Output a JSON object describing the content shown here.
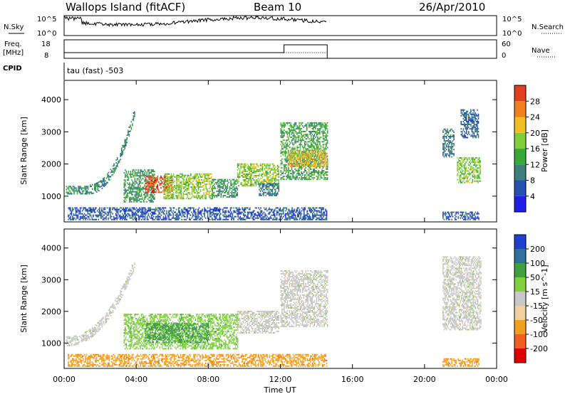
{
  "header": {
    "station": "Wallops Island (fitACF)",
    "beam": "Beam 10",
    "date": "26/Apr/2010"
  },
  "top_panels": {
    "nsky_label": "N.Sky",
    "nsearch_label": "N.Search",
    "nsky_ticks": [
      "10^5",
      "10^0"
    ],
    "nsearch_ticks": [
      "10^5",
      "10^0"
    ],
    "freq_label_1": "Freq.",
    "freq_label_2": "[MHz]",
    "freq_ticks": [
      "18",
      "8"
    ],
    "nave_label": "Nave",
    "nave_ticks": [
      "60",
      "0"
    ],
    "cpid_label": "CPID",
    "cpid_value": "tau (fast) -503"
  },
  "x_axis": {
    "label": "Time UT",
    "ticks": [
      "00:00",
      "04:00",
      "08:00",
      "12:00",
      "16:00",
      "20:00",
      "00:00"
    ],
    "range_hours": [
      0,
      24
    ]
  },
  "colors": {
    "power_scale": [
      "#1f1fe6",
      "#2550b0",
      "#3d7f7a",
      "#38a838",
      "#7fcf3a",
      "#f0c020",
      "#f08020",
      "#e04020",
      "#e00000"
    ],
    "velocity_scale": [
      "#e00000",
      "#f06020",
      "#f0a020",
      "#f0d0a0",
      "#c8c8c8",
      "#80d040",
      "#40a040",
      "#3070a0",
      "#2040d0"
    ]
  },
  "chart_data": [
    {
      "type": "heatmap",
      "name": "power-panel",
      "ylabel": "Slant Range [km]",
      "ylim": [
        200,
        4600
      ],
      "yticks": [
        1000,
        2000,
        3000,
        4000
      ],
      "colorbar_label": "Power [dB]",
      "colorbar_ticks": [
        "4",
        "8",
        "12",
        "16",
        "20",
        "24",
        "28"
      ],
      "colorbar_range": [
        0,
        32
      ],
      "regions": [
        {
          "t0": 0.1,
          "t1": 1.3,
          "r0": 1050,
          "r1": 1300,
          "v": 10
        },
        {
          "t0": 1.3,
          "t1": 3.9,
          "r0": 1200,
          "r1": 3600,
          "v": 9,
          "arc": true
        },
        {
          "t0": 3.3,
          "t1": 5.0,
          "r0": 800,
          "r1": 1800,
          "v": 11
        },
        {
          "t0": 4.5,
          "t1": 6.0,
          "r0": 1100,
          "r1": 1600,
          "v": 26
        },
        {
          "t0": 5.5,
          "t1": 8.2,
          "r0": 900,
          "r1": 1700,
          "v": 16
        },
        {
          "t0": 8.2,
          "t1": 9.6,
          "r0": 950,
          "r1": 1500,
          "v": 11
        },
        {
          "t0": 9.6,
          "t1": 11.9,
          "r0": 1300,
          "r1": 2000,
          "v": 16
        },
        {
          "t0": 10.8,
          "t1": 11.9,
          "r0": 1000,
          "r1": 1400,
          "v": 8
        },
        {
          "t0": 12.0,
          "t1": 14.6,
          "r0": 1500,
          "r1": 3300,
          "v": 12
        },
        {
          "t0": 12.4,
          "t1": 14.6,
          "r0": 1900,
          "r1": 2400,
          "v": 20
        },
        {
          "t0": 0.2,
          "t1": 14.6,
          "r0": 250,
          "r1": 650,
          "v": 6
        },
        {
          "t0": 21.0,
          "t1": 21.6,
          "r0": 2200,
          "r1": 3100,
          "v": 9
        },
        {
          "t0": 21.8,
          "t1": 23.1,
          "r0": 1400,
          "r1": 2200,
          "v": 15
        },
        {
          "t0": 22.0,
          "t1": 23.0,
          "r0": 2800,
          "r1": 3700,
          "v": 7
        },
        {
          "t0": 21.0,
          "t1": 23.0,
          "r0": 250,
          "r1": 500,
          "v": 6
        }
      ]
    },
    {
      "type": "heatmap",
      "name": "velocity-panel",
      "ylabel": "Slant Range [km]",
      "ylim": [
        200,
        4600
      ],
      "yticks": [
        1000,
        2000,
        3000,
        4000
      ],
      "colorbar_label": "Velocity [m s^-1]",
      "colorbar_ticks": [
        "-200",
        "-100",
        "-50",
        "-15",
        "15",
        "50",
        "100",
        "200"
      ],
      "regions": [
        {
          "t0": 0.1,
          "t1": 3.9,
          "r0": 1050,
          "r1": 3500,
          "c": 4,
          "arc": true
        },
        {
          "t0": 3.3,
          "t1": 9.6,
          "r0": 800,
          "r1": 1900,
          "c": 5
        },
        {
          "t0": 4.5,
          "t1": 8.0,
          "r0": 1000,
          "r1": 1600,
          "c": 6
        },
        {
          "t0": 9.6,
          "t1": 11.9,
          "r0": 1300,
          "r1": 2000,
          "c": 4
        },
        {
          "t0": 12.0,
          "t1": 14.6,
          "r0": 1500,
          "r1": 3300,
          "c": 4
        },
        {
          "t0": 0.2,
          "t1": 14.6,
          "r0": 250,
          "r1": 650,
          "c": 2
        },
        {
          "t0": 21.0,
          "t1": 23.1,
          "r0": 1400,
          "r1": 3700,
          "c": 4
        },
        {
          "t0": 21.0,
          "t1": 23.0,
          "r0": 250,
          "r1": 500,
          "c": 2
        }
      ]
    }
  ]
}
